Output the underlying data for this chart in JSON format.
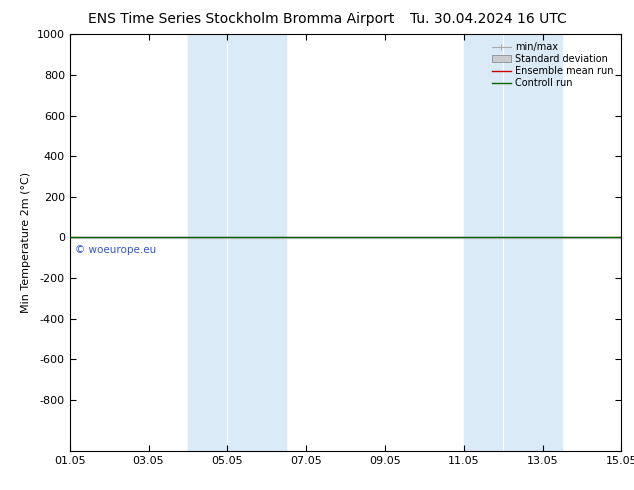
{
  "title_left": "ENS Time Series Stockholm Bromma Airport",
  "title_right": "Tu. 30.04.2024 16 UTC",
  "ylabel": "Min Temperature 2m (°C)",
  "ylim_top": -1050,
  "ylim_bottom": 1000,
  "yticks": [
    -800,
    -600,
    -400,
    -200,
    0,
    200,
    400,
    600,
    800,
    1000
  ],
  "xlim": [
    0,
    14
  ],
  "xtick_labels": [
    "01.05",
    "03.05",
    "05.05",
    "07.05",
    "09.05",
    "11.05",
    "13.05",
    "15.05"
  ],
  "xtick_positions": [
    0,
    2,
    4,
    6,
    8,
    10,
    12,
    14
  ],
  "shaded_regions": [
    {
      "start": 3.0,
      "end": 4.0
    },
    {
      "start": 4.0,
      "end": 5.5
    },
    {
      "start": 10.0,
      "end": 11.0
    },
    {
      "start": 11.0,
      "end": 12.5
    }
  ],
  "shaded_bands": [
    {
      "start": 3.0,
      "end": 5.5
    },
    {
      "start": 10.0,
      "end": 12.5
    }
  ],
  "shaded_color": "#daeaf7",
  "line_y": 0,
  "ensemble_mean_color": "#cc0000",
  "control_run_color": "#006400",
  "min_max_color": "#aaaaaa",
  "std_dev_fill_color": "#cccccc",
  "watermark_text": "© woeurope.eu",
  "watermark_color": "#3355cc",
  "background_color": "#ffffff",
  "legend_labels": [
    "min/max",
    "Standard deviation",
    "Ensemble mean run",
    "Controll run"
  ],
  "legend_colors": [
    "#aaaaaa",
    "#cccccc",
    "#cc0000",
    "#006400"
  ],
  "title_fontsize": 10,
  "axis_fontsize": 8,
  "tick_fontsize": 8
}
